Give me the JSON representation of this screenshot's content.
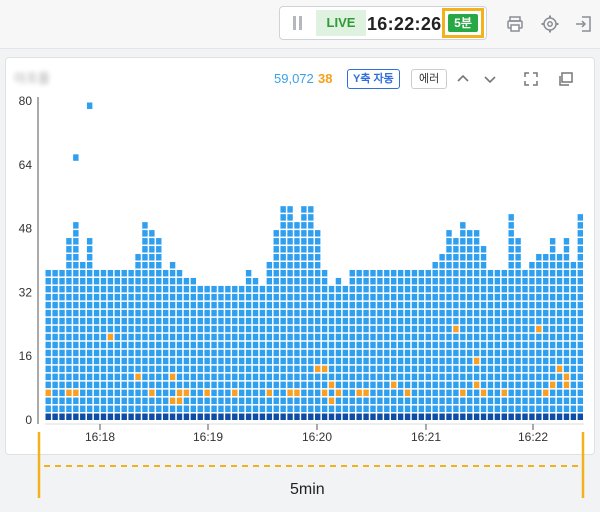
{
  "toolbar": {
    "live_label": "LIVE",
    "time": "16:22:26",
    "range_button": "5분",
    "icons": [
      "pause-icon",
      "print-icon",
      "gear-icon",
      "exit-icon"
    ]
  },
  "card": {
    "title": "아프를",
    "total_count": "59,072",
    "error_count": "38",
    "y_auto_label": "Y축 자동",
    "error_label": "에러",
    "colors": {
      "normal": "#2f9ff0",
      "base": "#0e4da3",
      "error": "#f7a024",
      "total": "#3aa0e8",
      "accent": "#f2b21c"
    }
  },
  "range_indicator": {
    "label": "5min"
  },
  "chart_data": {
    "type": "heatmap",
    "title": "",
    "xlabel": "",
    "ylabel": "",
    "x_ticks": [
      "16:18",
      "16:19",
      "16:20",
      "16:21",
      "16:22"
    ],
    "y_ticks": [
      "0",
      "16",
      "32",
      "48",
      "64",
      "80"
    ],
    "ylim": [
      0,
      80
    ],
    "grid": false,
    "columns": [
      38,
      38,
      38,
      44,
      48,
      38,
      38,
      38,
      38,
      38,
      38,
      38,
      38,
      38,
      44,
      48,
      42,
      38,
      38,
      38,
      38,
      38,
      38,
      38,
      38,
      38,
      38,
      38,
      38,
      38,
      38,
      38,
      38,
      38,
      38,
      38,
      38,
      38,
      38,
      38,
      38,
      38,
      38,
      38,
      38,
      38,
      38,
      38,
      38,
      38,
      38,
      38,
      38,
      38,
      38,
      38,
      38,
      38,
      38,
      38,
      38,
      38,
      38,
      38,
      38,
      38,
      38,
      38,
      38,
      38,
      38,
      38,
      38,
      38,
      38,
      38,
      38,
      38
    ],
    "column_tops": [
      37,
      37,
      37,
      44,
      48,
      38,
      45,
      37,
      37,
      37,
      37,
      37,
      37,
      40,
      48,
      46,
      44,
      37,
      38,
      37,
      35,
      35,
      32,
      33,
      33,
      33,
      33,
      33,
      33,
      36,
      35,
      33,
      38,
      47,
      53,
      52,
      48,
      52,
      53,
      47,
      37,
      33,
      35,
      33,
      37,
      37,
      37,
      36,
      37,
      37,
      37,
      37,
      37,
      37,
      37,
      37,
      39,
      40,
      46,
      44,
      48,
      46,
      46,
      43,
      37,
      37,
      37,
      50,
      44,
      37,
      38,
      40,
      40,
      44,
      40,
      44,
      38,
      50
    ],
    "outliers": [
      [
        6,
        78
      ],
      [
        4,
        65
      ]
    ],
    "errors": [
      [
        0,
        6
      ],
      [
        3,
        6
      ],
      [
        4,
        6
      ],
      [
        9,
        20
      ],
      [
        13,
        10
      ],
      [
        15,
        6
      ],
      [
        18,
        10
      ],
      [
        18,
        4
      ],
      [
        19,
        6
      ],
      [
        19,
        4
      ],
      [
        20,
        6
      ],
      [
        23,
        6
      ],
      [
        27,
        6
      ],
      [
        32,
        6
      ],
      [
        35,
        6
      ],
      [
        36,
        6
      ],
      [
        39,
        12
      ],
      [
        40,
        12
      ],
      [
        40,
        6
      ],
      [
        41,
        4
      ],
      [
        41,
        8
      ],
      [
        42,
        6
      ],
      [
        45,
        6
      ],
      [
        46,
        6
      ],
      [
        50,
        8
      ],
      [
        52,
        6
      ],
      [
        59,
        22
      ],
      [
        60,
        6
      ],
      [
        62,
        14
      ],
      [
        62,
        8
      ],
      [
        63,
        6
      ],
      [
        66,
        6
      ],
      [
        71,
        22
      ],
      [
        72,
        6
      ],
      [
        73,
        8
      ],
      [
        74,
        12
      ],
      [
        75,
        8
      ],
      [
        75,
        10
      ]
    ],
    "x_range_label": "5min"
  }
}
